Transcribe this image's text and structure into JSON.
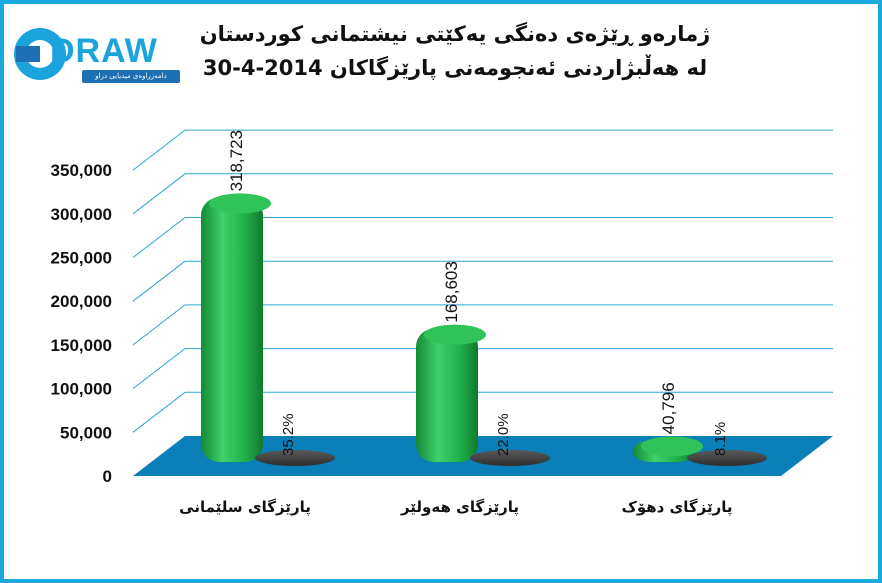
{
  "chart_data": {
    "type": "bar",
    "title_lines": [
      "ژمارەو ڕێژەی دەنگی یەکێتی نیشتمانی کوردستان",
      "لە هەڵبژاردنی ئەنجومەنی پارێزگاکان 2014-4-30"
    ],
    "categories": [
      "پارێزگای سلێمانی",
      "پارێزگای هەولێر",
      "پارێزگای دهۆک"
    ],
    "series": [
      {
        "values": [
          318723,
          168603,
          40796
        ],
        "labels": [
          "318,723",
          "168,603",
          "40,796"
        ],
        "color": "#22b24c"
      },
      {
        "values": [
          35.2,
          22.0,
          8.1
        ],
        "labels": [
          "35.2%",
          "22.0%",
          "8.1%"
        ],
        "color": "#4a4a4a"
      }
    ],
    "yticks": [
      "0",
      "50,000",
      "100,000",
      "150,000",
      "200,000",
      "250,000",
      "300,000",
      "350,000"
    ],
    "ylim": [
      0,
      350000
    ],
    "grid": true,
    "floor_color": "#0a7fb8",
    "gridline_color": "#2ea3d6"
  },
  "logo": {
    "text": "DRAW",
    "subtitle": "دامەزراوەی میدیایی دراو"
  },
  "frame_color": "#19a9dc"
}
